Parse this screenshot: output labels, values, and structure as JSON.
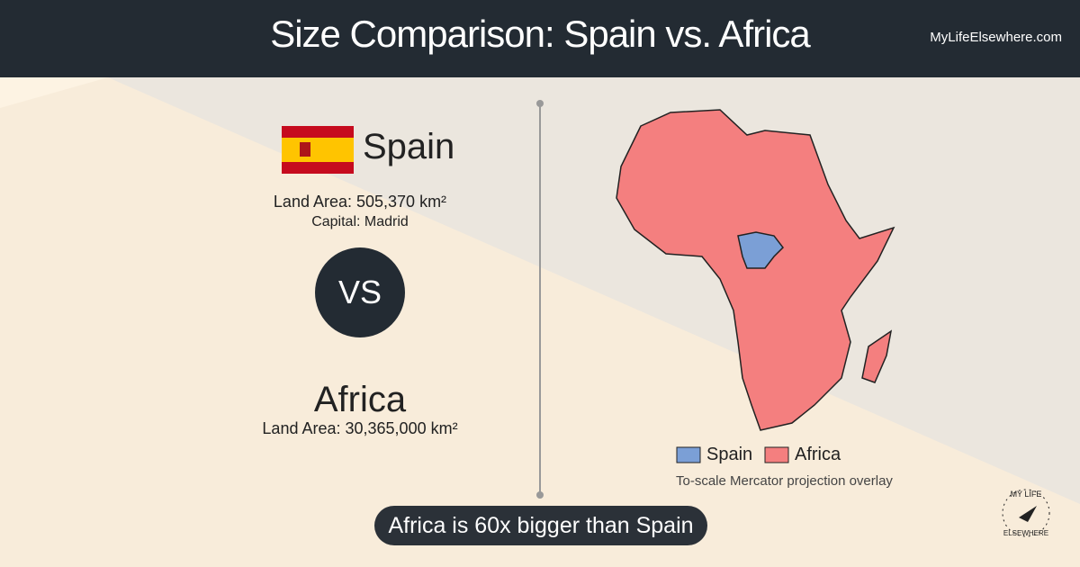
{
  "header": {
    "title": "Size Comparison: Spain vs. Africa",
    "site": "MyLifeElsewhere.com"
  },
  "country1": {
    "name": "Spain",
    "land_area": "Land Area: 505,370 km²",
    "capital": "Capital: Madrid"
  },
  "vs": "VS",
  "country2": {
    "name": "Africa",
    "land_area": "Land Area: 30,365,000 km²"
  },
  "legend": [
    {
      "label": "Spain",
      "color": "#7b9fd6"
    },
    {
      "label": "Africa",
      "color": "#f47f7f"
    }
  ],
  "note": "To-scale Mercator projection overlay",
  "summary": "Africa is 60x bigger than Spain",
  "logo": {
    "line1": "MY LIFE",
    "line2": "ELSEWHERE"
  }
}
